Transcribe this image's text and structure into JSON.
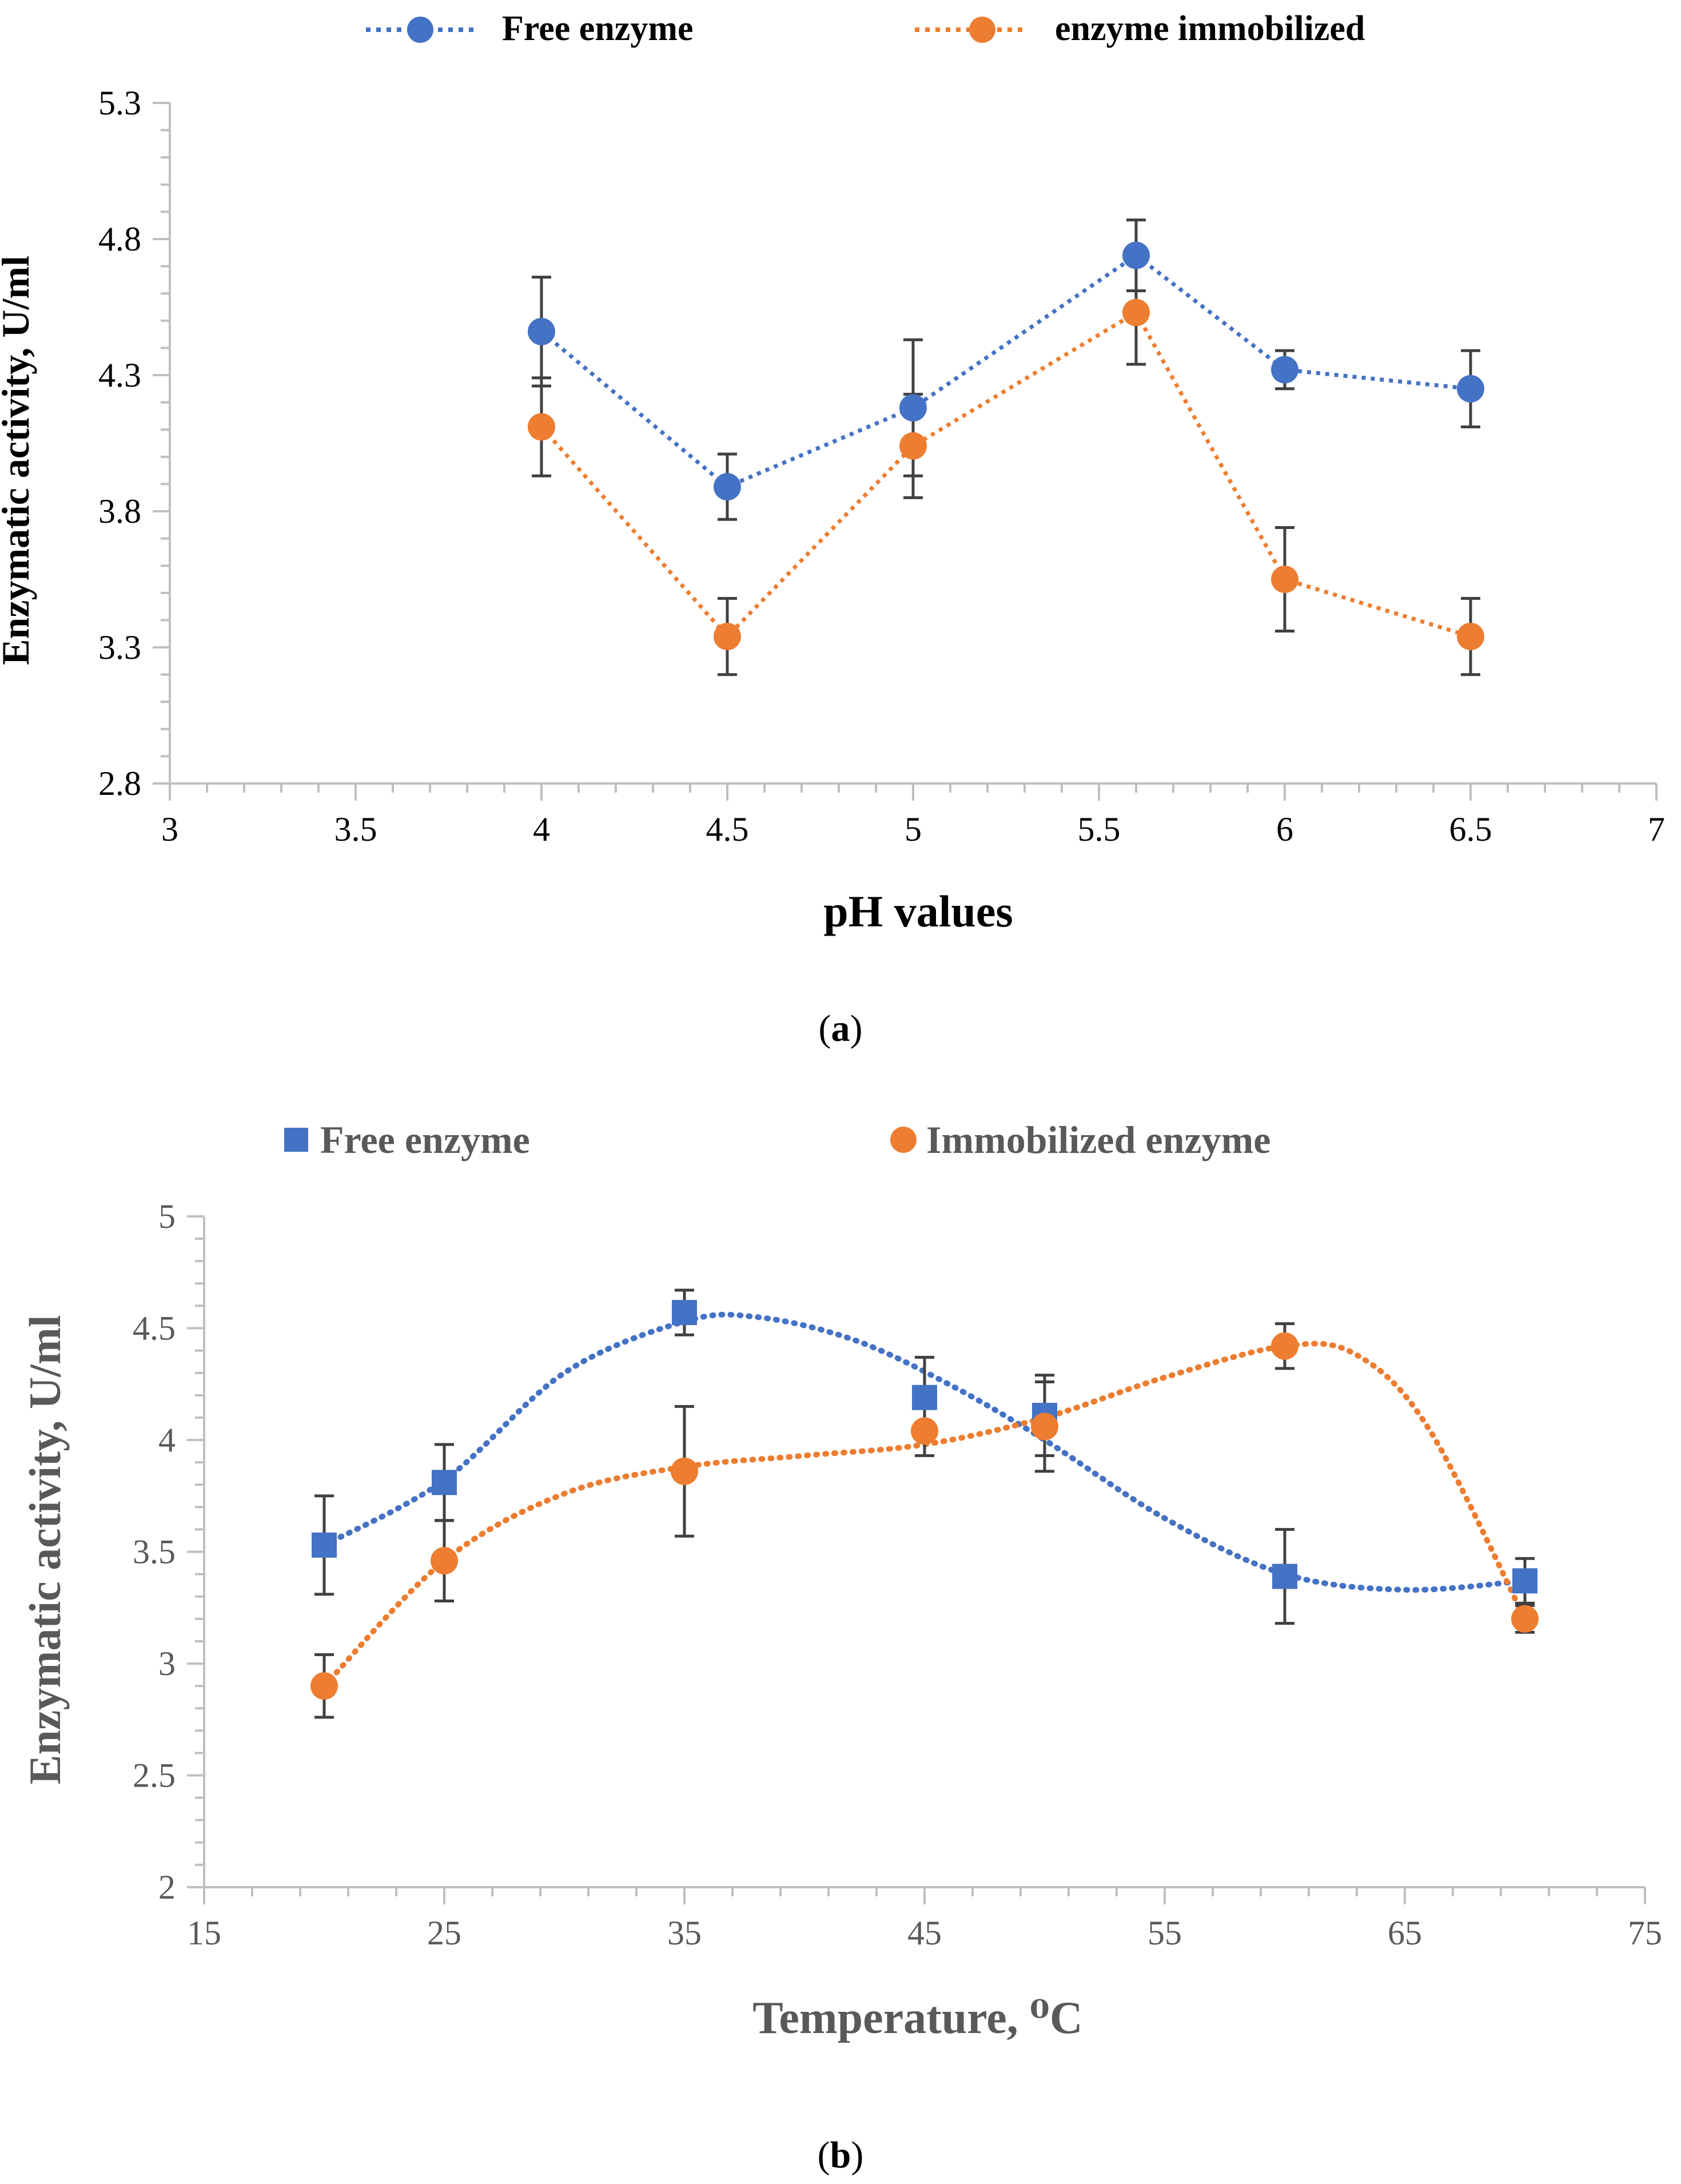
{
  "colors": {
    "free": "#4472C4",
    "immobilized": "#ED7D31",
    "axis": "#BFBFBF",
    "errorbar": "#404040",
    "text": "#000000",
    "label_b": "#595959"
  },
  "chart_data": [
    {
      "type": "line",
      "panel_label": "(a)",
      "panel_label_letter": "a",
      "xlabel": "pH values",
      "ylabel": "Enzymatic activity, U/ml",
      "xlim": [
        3,
        7
      ],
      "ylim": [
        2.8,
        5.3
      ],
      "x_ticks": [
        3,
        3.5,
        4,
        4.5,
        5,
        5.5,
        6,
        6.5,
        7
      ],
      "x_tick_labels": [
        "3",
        "3.5",
        "4",
        "4.5",
        "5",
        "5.5",
        "6",
        "6.5",
        "7"
      ],
      "x_minor_step": 0.1,
      "y_ticks": [
        2.8,
        3.3,
        3.8,
        4.3,
        4.8,
        5.3
      ],
      "y_tick_labels": [
        "2.8",
        "3.3",
        "3.8",
        "4.3",
        "4.8",
        "5.3"
      ],
      "y_minor_step": 0.1,
      "grid": false,
      "legend_position": "top",
      "series": [
        {
          "name": "Free enzyme",
          "marker": "circle",
          "color_key": "free",
          "x": [
            4,
            4.5,
            5,
            5.6,
            6,
            6.5
          ],
          "y": [
            4.46,
            3.89,
            4.18,
            4.74,
            4.32,
            4.25
          ],
          "error": [
            0.2,
            0.12,
            0.25,
            0.13,
            0.07,
            0.14
          ]
        },
        {
          "name": "enzyme immobilized",
          "marker": "circle",
          "color_key": "immobilized",
          "x": [
            4,
            4.5,
            5,
            5.6,
            6,
            6.5
          ],
          "y": [
            4.11,
            3.34,
            4.04,
            4.53,
            3.55,
            3.34
          ],
          "error": [
            0.18,
            0.14,
            0.19,
            0.19,
            0.19,
            0.14
          ]
        }
      ]
    },
    {
      "type": "scatter",
      "panel_label": "(b)",
      "panel_label_letter": "b",
      "xlabel": "Temperature, ⁰C",
      "ylabel": "Enzymatic activity, U/ml",
      "xlim": [
        15,
        75
      ],
      "ylim": [
        2,
        5
      ],
      "x_ticks": [
        15,
        25,
        35,
        45,
        55,
        65,
        75
      ],
      "x_tick_labels": [
        "15",
        "25",
        "35",
        "45",
        "55",
        "65",
        "75"
      ],
      "x_minor_step": 2,
      "y_ticks": [
        2,
        2.5,
        3,
        3.5,
        4,
        4.5,
        5
      ],
      "y_tick_labels": [
        "2",
        "2.5",
        "3",
        "3.5",
        "4",
        "4.5",
        "5"
      ],
      "y_minor_step": 0.1,
      "grid": false,
      "legend_position": "top",
      "trendline": "smooth dotted",
      "series": [
        {
          "name": "Free enzyme",
          "marker": "square",
          "color_key": "free",
          "x": [
            20,
            25,
            35,
            45,
            50,
            60,
            70
          ],
          "y": [
            3.53,
            3.81,
            4.57,
            4.19,
            4.11,
            3.39,
            3.37
          ],
          "error": [
            0.22,
            0.17,
            0.1,
            0.18,
            0.18,
            0.21,
            0.1
          ]
        },
        {
          "name": "Immobilized enzyme",
          "marker": "circle",
          "color_key": "immobilized",
          "x": [
            20,
            25,
            35,
            45,
            50,
            60,
            70
          ],
          "y": [
            2.9,
            3.46,
            3.86,
            4.04,
            4.06,
            4.42,
            3.2
          ],
          "error": [
            0.14,
            0.18,
            0.29,
            0.11,
            0.2,
            0.1,
            0.06
          ]
        }
      ],
      "trend_points": [
        {
          "x": [
            20,
            25,
            30,
            35,
            38,
            42,
            46,
            50,
            55,
            60,
            65,
            70
          ],
          "y": [
            3.53,
            3.82,
            4.3,
            4.53,
            4.55,
            4.45,
            4.25,
            4.0,
            3.65,
            3.4,
            3.33,
            3.37
          ]
        },
        {
          "x": [
            20,
            25,
            30,
            35,
            40,
            45,
            50,
            55,
            60,
            63,
            66,
            70
          ],
          "y": [
            2.9,
            3.46,
            3.76,
            3.88,
            3.93,
            3.98,
            4.1,
            4.28,
            4.42,
            4.38,
            4.05,
            3.2
          ]
        }
      ]
    }
  ]
}
